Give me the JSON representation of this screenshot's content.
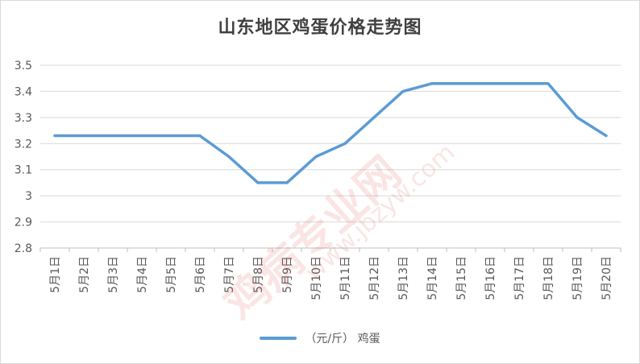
{
  "chart_data": {
    "type": "line",
    "title": "山东地区鸡蛋价格走势图",
    "categories": [
      "5月1日",
      "5月2日",
      "5月3日",
      "5月4日",
      "5月5日",
      "5月6日",
      "5月7日",
      "5月8日",
      "5月9日",
      "5月10日",
      "5月11日",
      "5月12日",
      "5月13日",
      "5月14日",
      "5月15日",
      "5月16日",
      "5月17日",
      "5月18日",
      "5月19日",
      "5月20日"
    ],
    "series": [
      {
        "name": "（元/斤） 鸡蛋",
        "color": "#5b9bd5",
        "values": [
          3.23,
          3.23,
          3.23,
          3.23,
          3.23,
          3.23,
          3.15,
          3.05,
          3.05,
          3.15,
          3.2,
          3.3,
          3.4,
          3.43,
          3.43,
          3.43,
          3.43,
          3.43,
          3.3,
          3.23
        ]
      }
    ],
    "ylim": [
      2.8,
      3.5
    ],
    "yticks": [
      "2.8",
      "2.9",
      "3",
      "3.1",
      "3.2",
      "3.3",
      "3.4",
      "3.5"
    ],
    "grid": true,
    "legend_position": "bottom"
  },
  "watermark": {
    "brand": "鸡病专业网",
    "url": "www.jbzyw.com"
  }
}
